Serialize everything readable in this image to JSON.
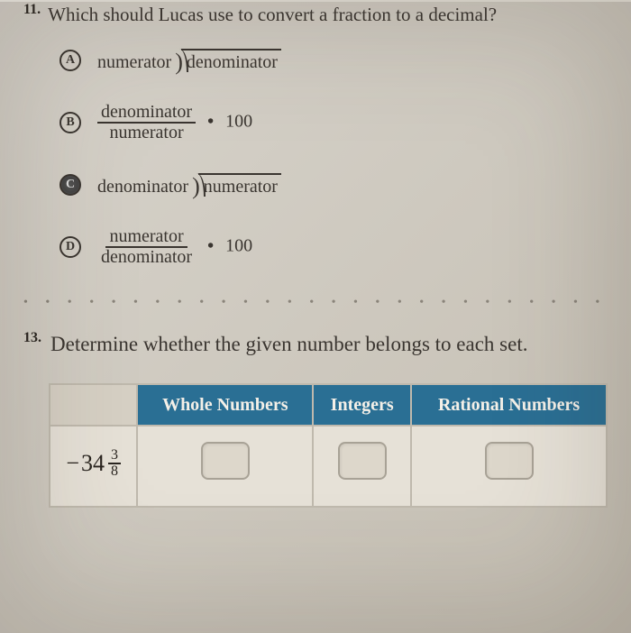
{
  "q11": {
    "number": "11.",
    "stem": "Which should Lucas use to convert a fraction to a decimal?",
    "choices": {
      "A": {
        "letter": "A",
        "divisor": "numerator",
        "dividend": "denominator",
        "selected": false
      },
      "B": {
        "letter": "B",
        "frac_num": "denominator",
        "frac_den": "numerator",
        "times": "100",
        "selected": false
      },
      "C": {
        "letter": "C",
        "divisor": "denominator",
        "dividend": "numerator",
        "selected": true
      },
      "D": {
        "letter": "D",
        "frac_num": "numerator",
        "frac_den": "denominator",
        "times": "100",
        "selected": false
      }
    }
  },
  "q13": {
    "number": "13.",
    "stem": "Determine whether the given number belongs to each set.",
    "columns": [
      "Whole Numbers",
      "Integers",
      "Rational Numbers"
    ],
    "row": {
      "sign": "−",
      "whole": "34",
      "frac_num": "3",
      "frac_den": "8"
    }
  },
  "style": {
    "header_bg": "#2a6f94",
    "header_fg": "#f4f0e8",
    "page_bg": "#d2cdc2",
    "text_color": "#3a3530"
  }
}
